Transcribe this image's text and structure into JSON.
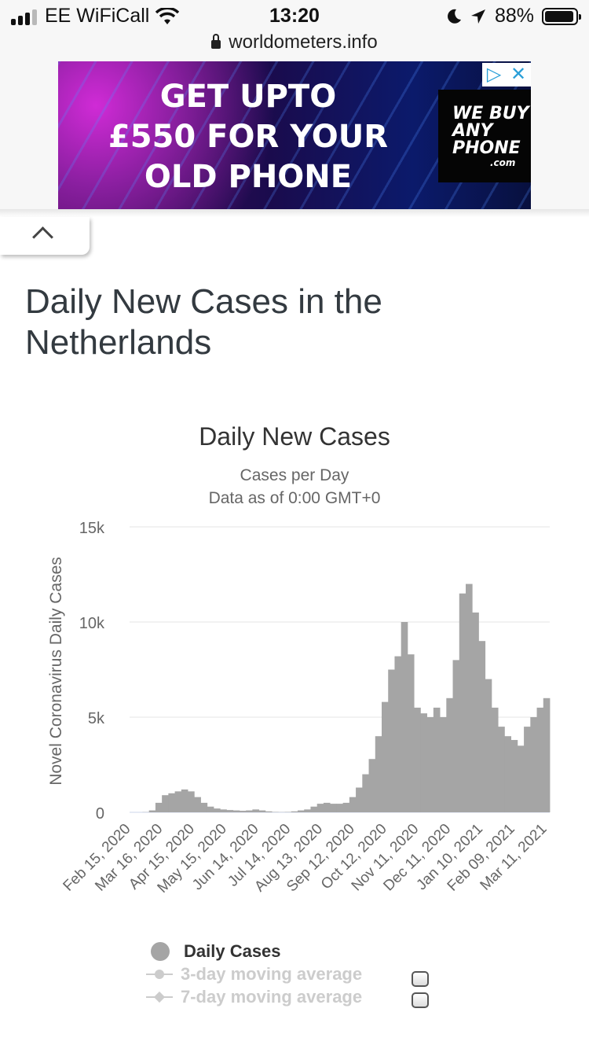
{
  "status_bar": {
    "carrier": "EE WiFiCall",
    "time": "13:20",
    "battery": "88%",
    "url": "worldometers.info"
  },
  "ad": {
    "headline_lines": [
      "GET UPTO",
      "£550 FOR YOUR",
      "OLD PHONE"
    ],
    "brand_lines": [
      "WE BUY",
      "ANY",
      "PHONE"
    ],
    "brand_domain": ".com"
  },
  "page": {
    "title": "Daily New Cases in the Netherlands"
  },
  "chart_data": {
    "type": "bar",
    "title": "Daily New Cases",
    "subtitle_lines": [
      "Cases per Day",
      "Data as of 0:00 GMT+0"
    ],
    "ylabel": "Novel Coronavirus Daily Cases",
    "xlabel": "",
    "ylim": [
      0,
      15000
    ],
    "yticks": [
      0,
      5000,
      10000,
      15000
    ],
    "ytick_labels": [
      "0",
      "5k",
      "10k",
      "15k"
    ],
    "x_tick_labels": [
      "Feb 15, 2020",
      "Mar 16, 2020",
      "Apr 15, 2020",
      "May 15, 2020",
      "Jun 14, 2020",
      "Jul 14, 2020",
      "Aug 13, 2020",
      "Sep 12, 2020",
      "Oct 12, 2020",
      "Nov 11, 2020",
      "Dec 11, 2020",
      "Jan 10, 2021",
      "Feb 09, 2021",
      "Mar 11, 2021"
    ],
    "grid": true,
    "color": "#a5a5a5",
    "series": [
      {
        "name": "Daily Cases",
        "note": "Approximate weekly averages of daily cases, one value per week from Feb 15, 2020 to Mar 19, 2021",
        "values": [
          0,
          0,
          10,
          100,
          500,
          900,
          1000,
          1100,
          1200,
          1100,
          800,
          500,
          300,
          200,
          150,
          120,
          100,
          80,
          100,
          150,
          100,
          50,
          20,
          10,
          20,
          50,
          100,
          150,
          300,
          450,
          500,
          450,
          450,
          500,
          800,
          1300,
          2000,
          2800,
          4000,
          5800,
          7500,
          8200,
          10000,
          8300,
          5500,
          5200,
          5000,
          5500,
          5000,
          6000,
          8000,
          11500,
          12000,
          10500,
          9000,
          7000,
          5500,
          4500,
          4000,
          3800,
          3500,
          4500,
          5000,
          5500,
          6000
        ]
      },
      {
        "name": "3-day moving average",
        "visible": false
      },
      {
        "name": "7-day moving average",
        "visible": false
      }
    ],
    "legend_placement": "bottom"
  },
  "legend": {
    "items": [
      "Daily Cases",
      "3-day moving average",
      "7-day moving average"
    ]
  }
}
